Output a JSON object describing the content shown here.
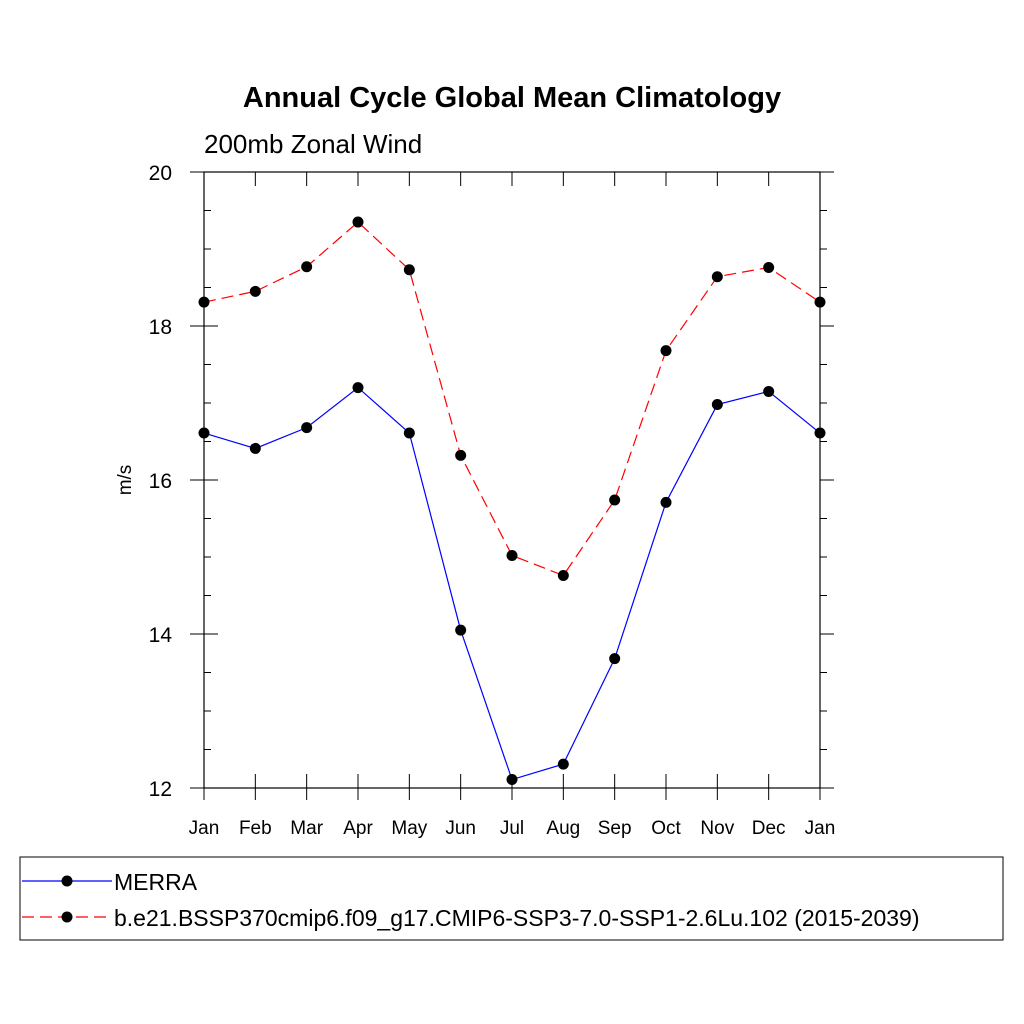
{
  "chart_data": {
    "type": "line",
    "title": "Annual Cycle Global Mean Climatology",
    "subtitle": "200mb Zonal Wind",
    "ylabel": "m/s",
    "xlabel": "",
    "ylim": [
      12,
      20
    ],
    "yticks": [
      12,
      14,
      16,
      18,
      20
    ],
    "ytick_labels": [
      "12",
      "14",
      "16",
      "18",
      "20"
    ],
    "categories": [
      "Jan",
      "Feb",
      "Mar",
      "Apr",
      "May",
      "Jun",
      "Jul",
      "Aug",
      "Sep",
      "Oct",
      "Nov",
      "Dec",
      "Jan"
    ],
    "series": [
      {
        "name": "MERRA",
        "color": "#0000ff",
        "dash": "solid",
        "values": [
          16.61,
          16.41,
          16.68,
          17.2,
          16.61,
          14.05,
          12.11,
          12.31,
          13.68,
          15.71,
          16.98,
          17.15,
          16.61
        ]
      },
      {
        "name": "b.e21.BSSP370cmip6.f09_g17.CMIP6-SSP3-7.0-SSP1-2.6Lu.102 (2015-2039)",
        "color": "#ff0000",
        "dash": "dashed",
        "values": [
          18.31,
          18.45,
          18.77,
          19.35,
          18.73,
          16.32,
          15.02,
          14.76,
          15.74,
          17.68,
          18.64,
          18.76,
          18.31
        ]
      }
    ],
    "legend_position": "bottom"
  }
}
